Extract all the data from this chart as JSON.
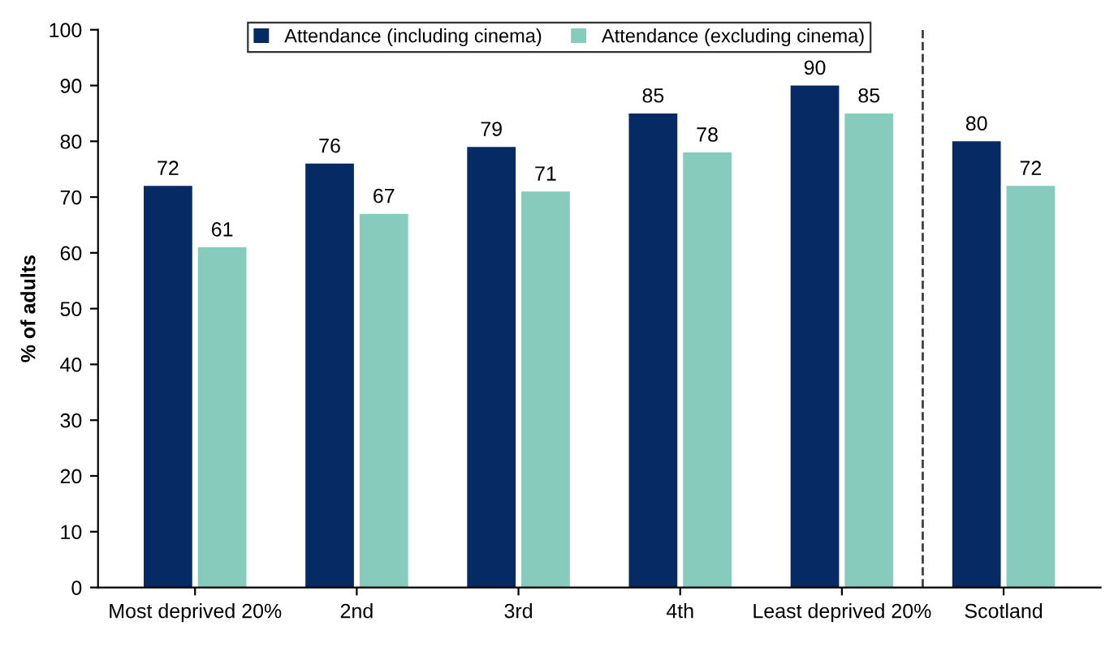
{
  "chart_data": {
    "type": "bar",
    "ylabel": "% of adults",
    "categories": [
      "Most deprived 20%",
      "2nd",
      "3rd",
      "4th",
      "Least deprived 20%",
      "Scotland"
    ],
    "series": [
      {
        "name": "Attendance (including cinema)",
        "color": "#062a63",
        "values": [
          72,
          76,
          79,
          85,
          90,
          80
        ]
      },
      {
        "name": "Attendance (excluding cinema)",
        "color": "#86cbbc",
        "values": [
          61,
          67,
          71,
          78,
          85,
          72
        ]
      }
    ],
    "ylim": [
      0,
      100
    ],
    "yticks": [
      0,
      10,
      20,
      30,
      40,
      50,
      60,
      70,
      80,
      90,
      100
    ],
    "data_labels": true,
    "legend": "top",
    "grid": false
  }
}
